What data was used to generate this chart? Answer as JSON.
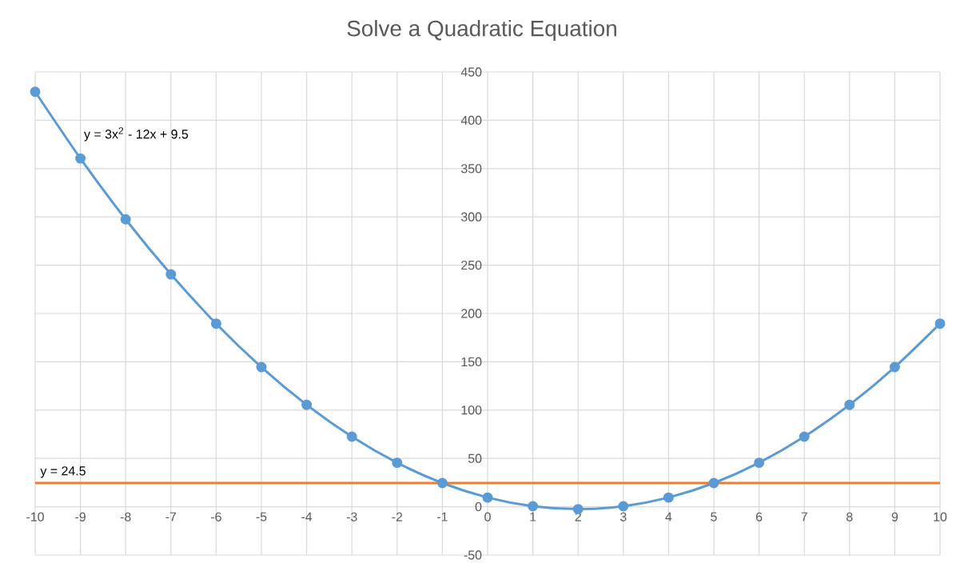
{
  "chart_data": {
    "type": "line",
    "title": "Solve a Quadratic Equation",
    "x": [
      -10,
      -9,
      -8,
      -7,
      -6,
      -5,
      -4,
      -3,
      -2,
      -1,
      0,
      1,
      2,
      3,
      4,
      5,
      6,
      7,
      8,
      9,
      10
    ],
    "series": [
      {
        "name": "y = 3x$^{2}$ - 12x + 9.5",
        "color": "#5b9bd5",
        "values": [
          429.5,
          360.5,
          297.5,
          240.5,
          189.5,
          144.5,
          105.5,
          72.5,
          45.5,
          24.5,
          9.5,
          0.5,
          -2.5,
          0.5,
          9.5,
          24.5,
          45.5,
          72.5,
          105.5,
          144.5,
          189.5
        ]
      },
      {
        "name": "y = 24.5",
        "color": "#ed7d31",
        "x": [
          -10,
          10
        ],
        "values": [
          24.5,
          24.5
        ],
        "marker": "none"
      }
    ],
    "xlim": [
      -10,
      10
    ],
    "ylim": [
      -50,
      450
    ],
    "xticks": [
      -10,
      -9,
      -8,
      -7,
      -6,
      -5,
      -4,
      -3,
      -2,
      -1,
      0,
      1,
      2,
      3,
      4,
      5,
      6,
      7,
      8,
      9,
      10
    ],
    "yticks": [
      -50,
      0,
      50,
      100,
      150,
      200,
      250,
      300,
      350,
      400,
      450
    ],
    "grid": true,
    "marker": "circle",
    "line_style": "solid",
    "legend": false
  }
}
